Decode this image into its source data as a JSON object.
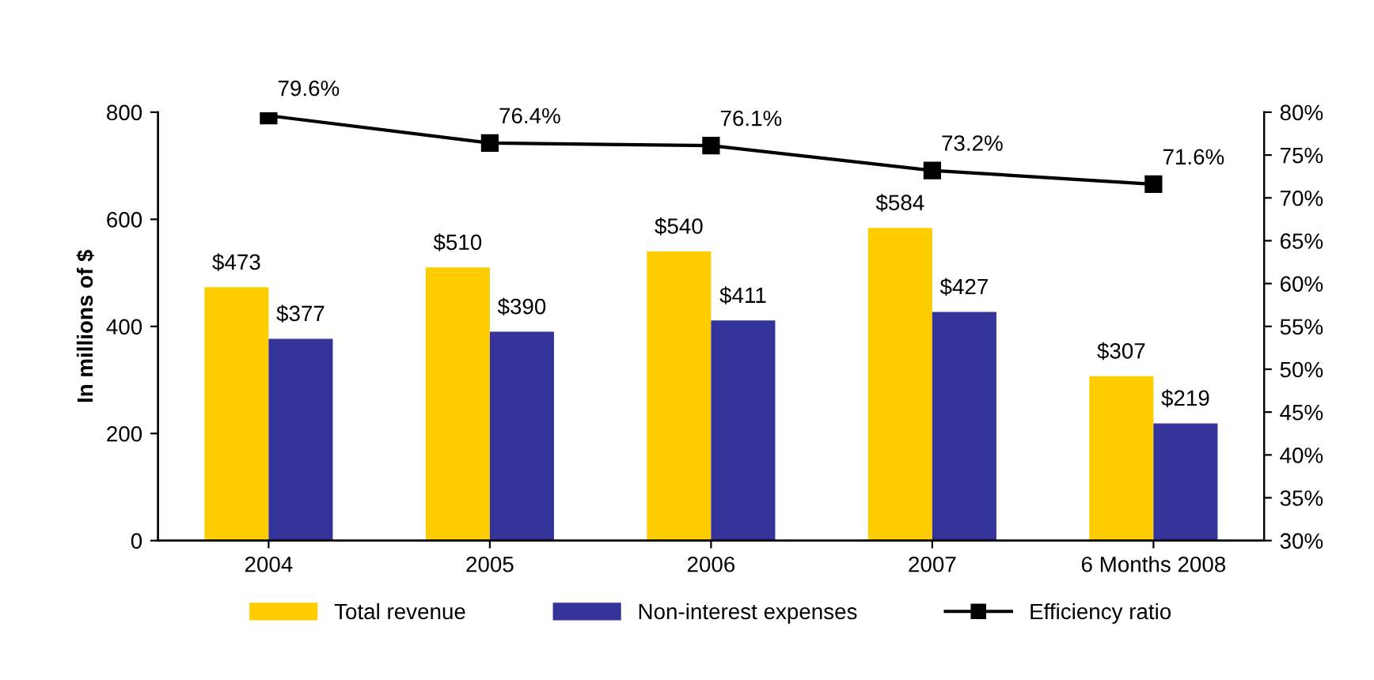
{
  "chart_data": {
    "type": "bar",
    "ylabel": "In millions of $",
    "categories": [
      "2004",
      "2005",
      "2006",
      "2007",
      "6 Months 2008"
    ],
    "series": [
      {
        "name": "Total revenue",
        "color": "#ffcc00",
        "values": [
          473,
          510,
          540,
          584,
          307
        ],
        "value_labels": [
          "$473",
          "$510",
          "$540",
          "$584",
          "$307"
        ]
      },
      {
        "name": "Non-interest expenses",
        "color": "#333399",
        "values": [
          377,
          390,
          411,
          427,
          219
        ],
        "value_labels": [
          "$377",
          "$390",
          "$411",
          "$427",
          "$219"
        ]
      },
      {
        "name": "Efficiency ratio",
        "type": "line",
        "axis": "y2",
        "color": "#000000",
        "marker": "square",
        "line_style": "solid",
        "values": [
          79.6,
          76.4,
          76.1,
          73.2,
          71.6
        ],
        "value_labels": [
          "79.6%",
          "76.4%",
          "76.1%",
          "73.2%",
          "71.6%"
        ]
      }
    ],
    "ylim": [
      0,
      800
    ],
    "yticks": [
      0,
      200,
      400,
      600,
      800
    ],
    "y2lim": [
      30,
      80
    ],
    "y2ticks": [
      {
        "value": 30,
        "label": "30%"
      },
      {
        "value": 35,
        "label": "35%"
      },
      {
        "value": 40,
        "label": "40%"
      },
      {
        "value": 45,
        "label": "45%"
      },
      {
        "value": 50,
        "label": "50%"
      },
      {
        "value": 55,
        "label": "55%"
      },
      {
        "value": 60,
        "label": "60%"
      },
      {
        "value": 65,
        "label": "65%"
      },
      {
        "value": 70,
        "label": "70%"
      },
      {
        "value": 75,
        "label": "75%"
      },
      {
        "value": 80,
        "label": "80%"
      }
    ],
    "grid": false,
    "legend": "bottom"
  }
}
